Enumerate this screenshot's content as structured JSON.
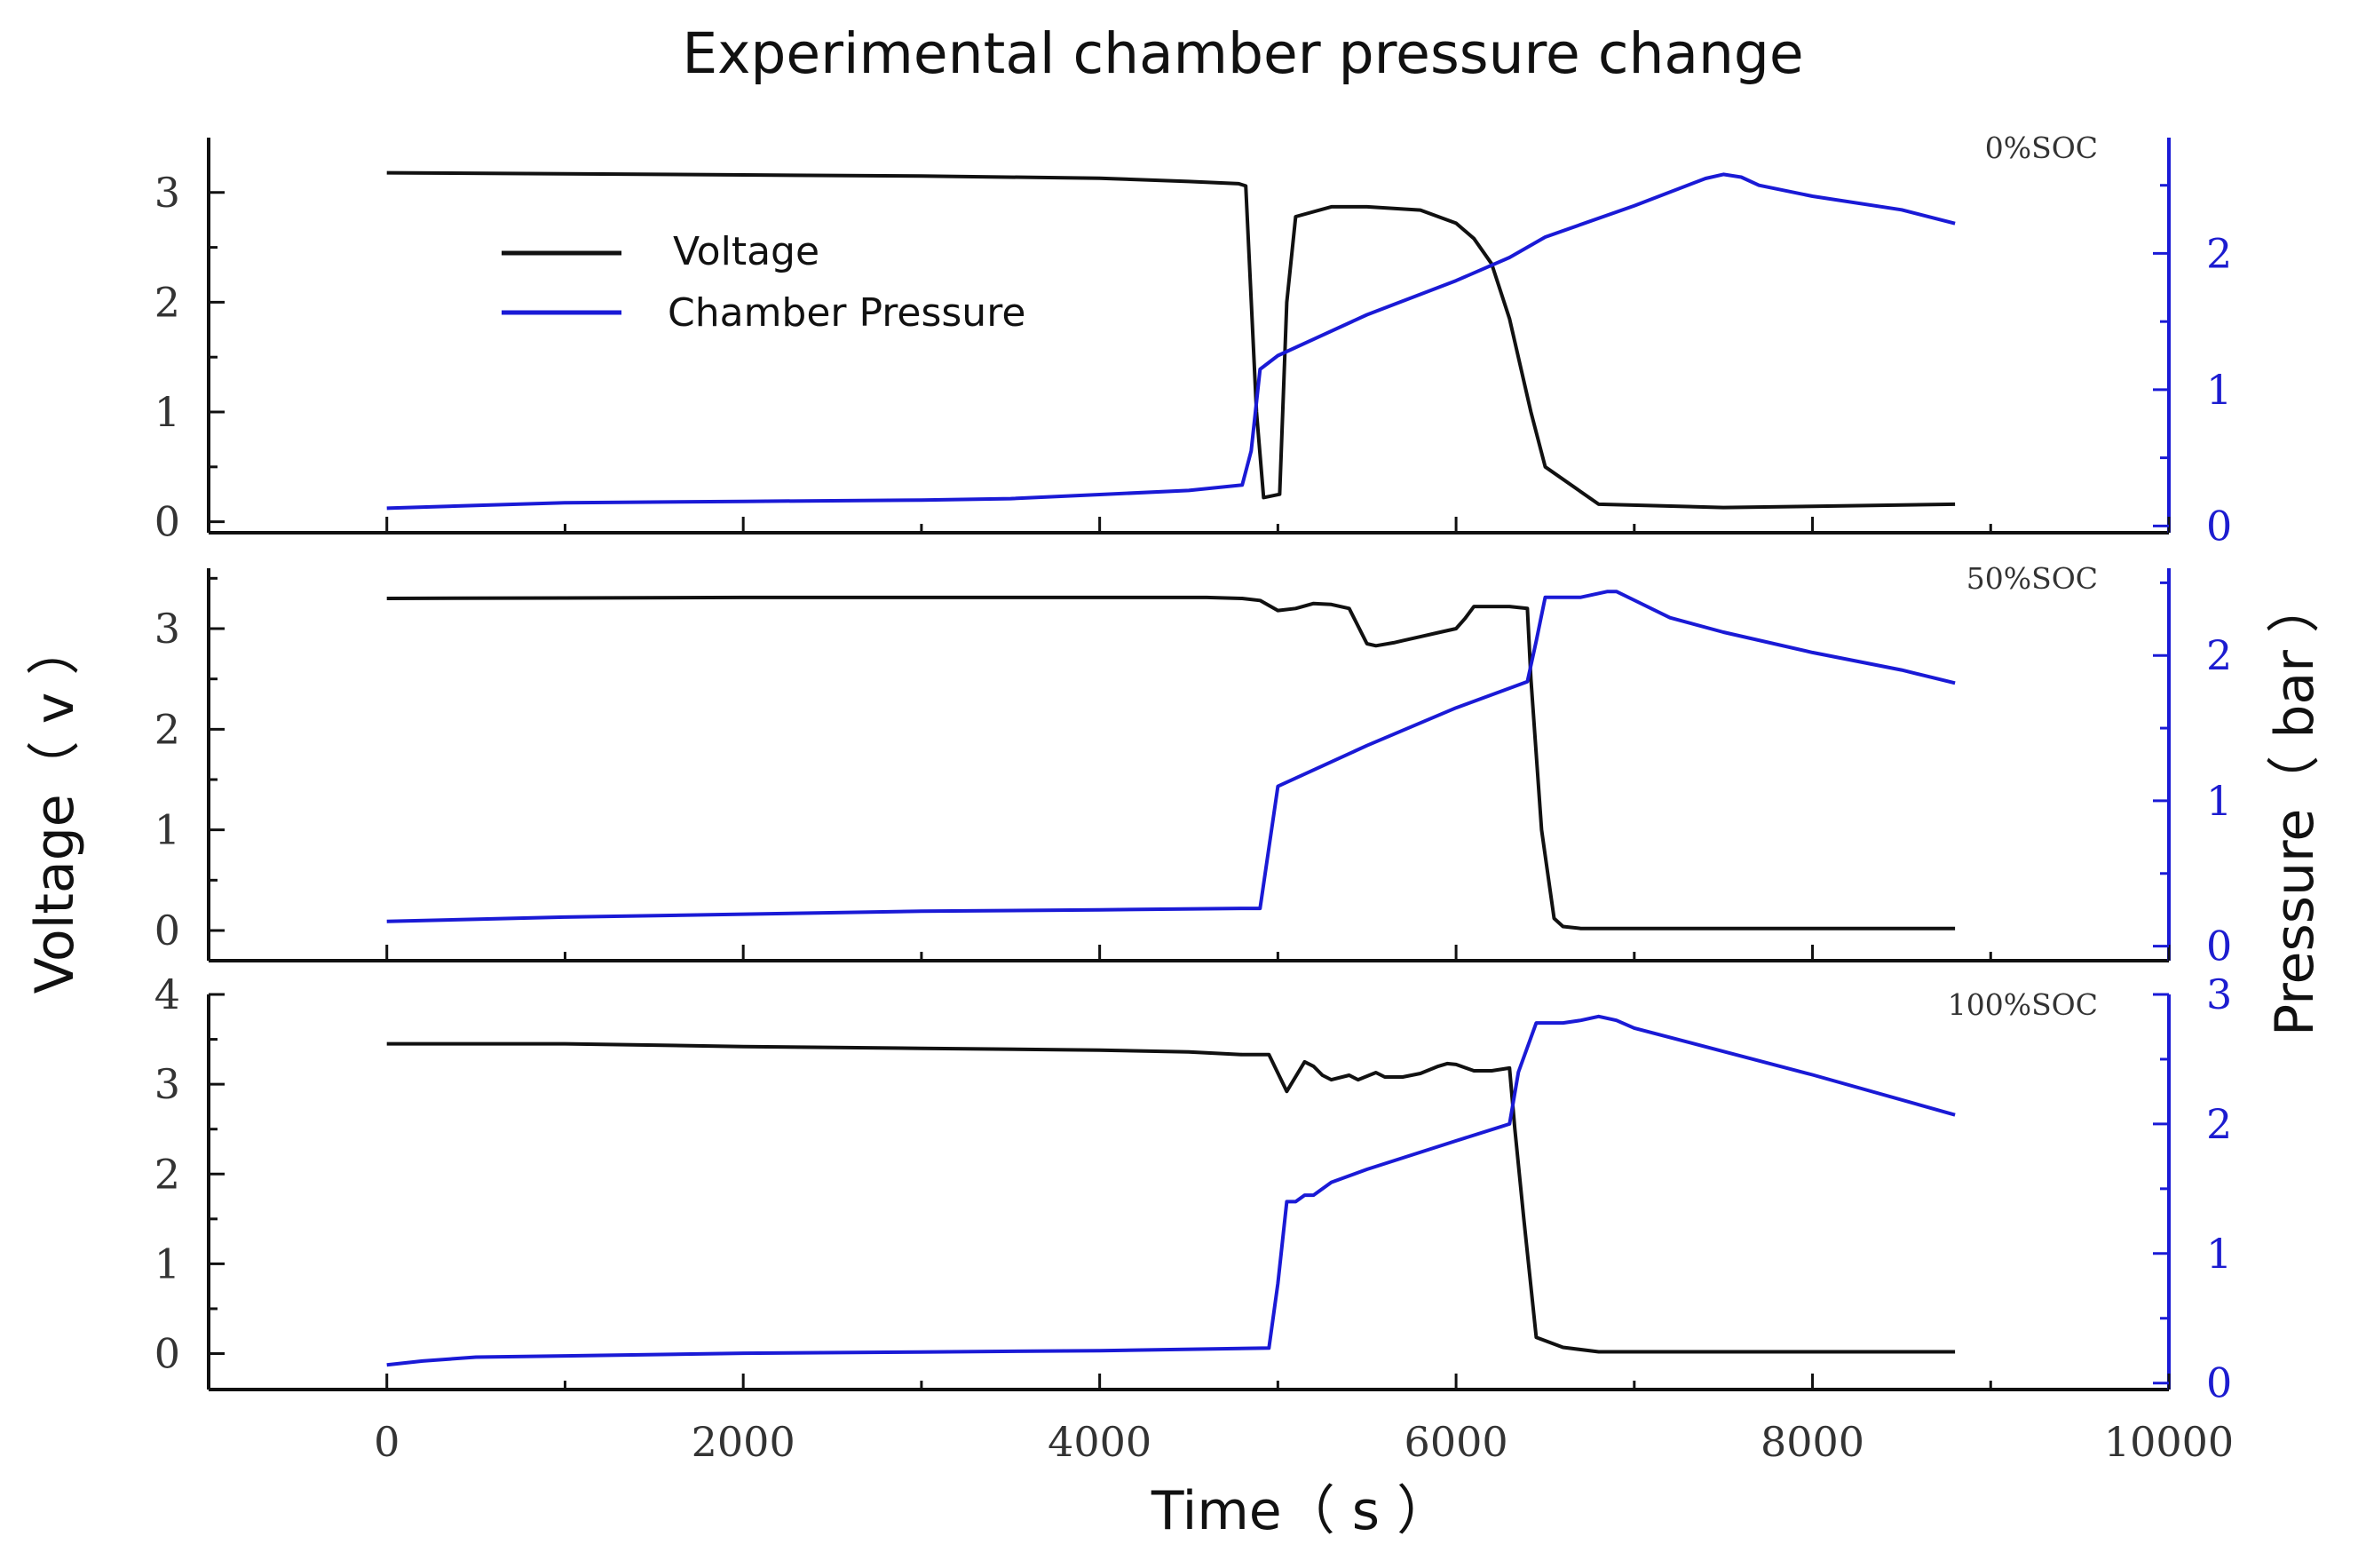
{
  "title": "Experimental chamber pressure change",
  "xlabel": "Time（ s ）",
  "ylabel_left": "Voltage（ v ）",
  "ylabel_right": "Pressure（ bar ）",
  "legend": [
    {
      "name": "Voltage",
      "color": "#111111"
    },
    {
      "name": "Chamber Pressure",
      "color": "#1a1ad6"
    }
  ],
  "chart_data": [
    {
      "type": "line",
      "label": "0%SOC",
      "xlim": [
        -1000,
        10000
      ],
      "x_ticks": [
        0,
        2000,
        4000,
        6000,
        8000,
        10000
      ],
      "ylim_left": [
        -0.1,
        3.5
      ],
      "yticks_left": [
        0,
        1,
        2,
        3
      ],
      "ylim_right": [
        -0.05,
        2.85
      ],
      "yticks_right": [
        0,
        1,
        2
      ],
      "series": [
        {
          "name": "Voltage",
          "axis": "left",
          "x": [
            0,
            1000,
            2000,
            3000,
            4000,
            4500,
            4780,
            4820,
            4880,
            4920,
            5010,
            5050,
            5100,
            5300,
            5500,
            5800,
            6000,
            6100,
            6200,
            6300,
            6420,
            6500,
            6800,
            7500,
            8000,
            8800
          ],
          "y": [
            3.18,
            3.17,
            3.16,
            3.15,
            3.13,
            3.1,
            3.08,
            3.06,
            1.0,
            0.22,
            0.25,
            2.0,
            2.78,
            2.87,
            2.87,
            2.84,
            2.72,
            2.58,
            2.35,
            1.85,
            1.0,
            0.5,
            0.16,
            0.13,
            0.14,
            0.16
          ]
        },
        {
          "name": "Chamber Pressure",
          "axis": "right",
          "x": [
            0,
            500,
            1000,
            2000,
            3000,
            3500,
            4000,
            4500,
            4800,
            4850,
            4900,
            5000,
            5500,
            6000,
            6300,
            6500,
            7000,
            7400,
            7500,
            7600,
            7700,
            8000,
            8500,
            8800
          ],
          "y": [
            0.13,
            0.15,
            0.17,
            0.18,
            0.19,
            0.2,
            0.23,
            0.26,
            0.3,
            0.55,
            1.15,
            1.25,
            1.55,
            1.8,
            1.97,
            2.12,
            2.35,
            2.55,
            2.58,
            2.56,
            2.5,
            2.42,
            2.32,
            2.22
          ]
        }
      ]
    },
    {
      "type": "line",
      "label": "50%SOC",
      "xlim": [
        -1000,
        10000
      ],
      "x_ticks": [
        0,
        2000,
        4000,
        6000,
        8000,
        10000
      ],
      "ylim_left": [
        -0.3,
        3.6
      ],
      "yticks_left": [
        0,
        1,
        2,
        3
      ],
      "ylim_right": [
        -0.1,
        2.6
      ],
      "yticks_right": [
        0,
        1,
        2
      ],
      "series": [
        {
          "name": "Voltage",
          "axis": "left",
          "x": [
            0,
            2000,
            4000,
            4600,
            4800,
            4900,
            5000,
            5100,
            5200,
            5300,
            5400,
            5500,
            5550,
            5650,
            5700,
            5800,
            5900,
            6000,
            6050,
            6100,
            6200,
            6300,
            6400,
            6420,
            6480,
            6550,
            6600,
            6700,
            7000,
            8000,
            8800
          ],
          "y": [
            3.3,
            3.31,
            3.31,
            3.31,
            3.3,
            3.28,
            3.18,
            3.2,
            3.25,
            3.24,
            3.2,
            2.85,
            2.83,
            2.86,
            2.88,
            2.92,
            2.96,
            3.0,
            3.1,
            3.22,
            3.22,
            3.22,
            3.2,
            2.5,
            1.0,
            0.12,
            0.04,
            0.02,
            0.02,
            0.02,
            0.02
          ]
        },
        {
          "name": "Chamber Pressure",
          "axis": "right",
          "x": [
            0,
            1000,
            2000,
            3000,
            4000,
            4800,
            4900,
            5000,
            5500,
            6000,
            6400,
            6450,
            6500,
            6600,
            6700,
            6850,
            6900,
            7000,
            7200,
            7500,
            8000,
            8500,
            8800
          ],
          "y": [
            0.17,
            0.2,
            0.22,
            0.24,
            0.25,
            0.26,
            0.26,
            1.1,
            1.38,
            1.64,
            1.82,
            2.1,
            2.4,
            2.4,
            2.4,
            2.44,
            2.44,
            2.38,
            2.26,
            2.16,
            2.02,
            1.9,
            1.81
          ]
        }
      ]
    },
    {
      "type": "line",
      "label": "100%SOC",
      "xlim": [
        -1000,
        10000
      ],
      "x_ticks": [
        0,
        2000,
        4000,
        6000,
        8000,
        10000
      ],
      "ylim_left": [
        -0.4,
        4.0
      ],
      "yticks_left": [
        0,
        1,
        2,
        3,
        4
      ],
      "ylim_right": [
        -0.05,
        3.0
      ],
      "yticks_right": [
        0,
        1,
        2,
        3
      ],
      "series": [
        {
          "name": "Voltage",
          "axis": "left",
          "x": [
            0,
            1000,
            2000,
            3000,
            4000,
            4500,
            4800,
            4950,
            5050,
            5150,
            5200,
            5250,
            5300,
            5400,
            5450,
            5550,
            5600,
            5700,
            5800,
            5900,
            5950,
            6000,
            6100,
            6200,
            6300,
            6330,
            6380,
            6450,
            6600,
            6800,
            7000,
            8000,
            8800
          ],
          "y": [
            3.45,
            3.45,
            3.42,
            3.4,
            3.38,
            3.36,
            3.33,
            3.33,
            2.92,
            3.25,
            3.2,
            3.1,
            3.05,
            3.1,
            3.05,
            3.13,
            3.08,
            3.08,
            3.12,
            3.2,
            3.23,
            3.22,
            3.15,
            3.15,
            3.18,
            2.5,
            1.5,
            0.18,
            0.07,
            0.02,
            0.02,
            0.02,
            0.02
          ]
        },
        {
          "name": "Chamber Pressure",
          "axis": "right",
          "x": [
            0,
            200,
            500,
            1000,
            2000,
            3000,
            4000,
            4950,
            5000,
            5050,
            5100,
            5150,
            5200,
            5300,
            5500,
            6000,
            6300,
            6350,
            6450,
            6600,
            6700,
            6800,
            6900,
            7000,
            8000,
            8800
          ],
          "y": [
            0.14,
            0.17,
            0.2,
            0.21,
            0.23,
            0.24,
            0.25,
            0.27,
            0.77,
            1.4,
            1.4,
            1.45,
            1.45,
            1.55,
            1.65,
            1.87,
            2.0,
            2.4,
            2.78,
            2.78,
            2.8,
            2.83,
            2.8,
            2.74,
            2.38,
            2.07
          ]
        }
      ]
    }
  ]
}
